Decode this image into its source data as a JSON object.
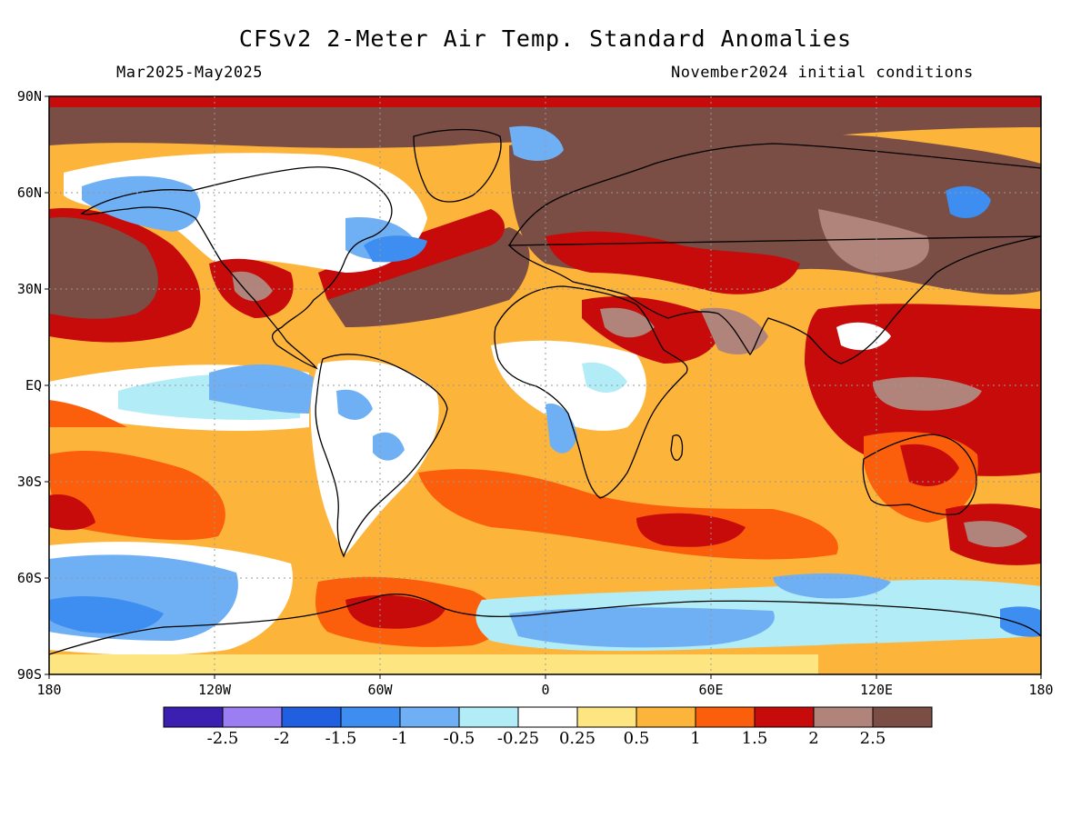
{
  "title": "CFSv2 2-Meter Air Temp. Standard Anomalies",
  "period": "Mar2025-May2025",
  "init": "November2024 initial conditions",
  "lat_ticks": [
    "90N",
    "60N",
    "30N",
    "EQ",
    "30S",
    "60S",
    "90S"
  ],
  "lon_ticks": [
    "180",
    "120W",
    "60W",
    "0",
    "60E",
    "120E",
    "180"
  ],
  "colorbar": {
    "colors": [
      "#3a1fb0",
      "#9b7ff2",
      "#1f5fe0",
      "#3d8ef0",
      "#6fb0f5",
      "#b2ecf7",
      "#ffffff",
      "#fde581",
      "#fdb43a",
      "#fb5f0c",
      "#c70a0a",
      "#b0847a",
      "#7a4d45"
    ],
    "labels": [
      "-2.5",
      "-2",
      "-1.5",
      "-1",
      "-0.5",
      "-0.25",
      "0.25",
      "0.5",
      "1",
      "1.5",
      "2",
      "2.5"
    ]
  },
  "legend_colors": {
    "ocean_base": "#fdb43a",
    "land_outline": "#000000"
  }
}
